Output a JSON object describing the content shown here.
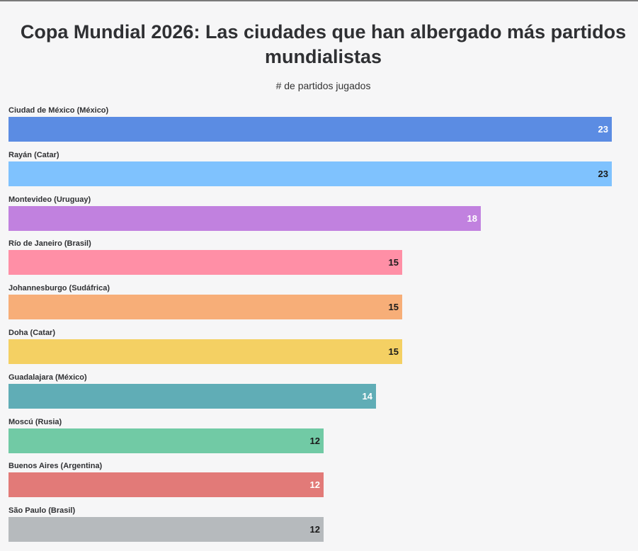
{
  "chart_data": {
    "type": "bar",
    "orientation": "horizontal",
    "title": "Copa Mundial 2026: Las ciudades que han albergado más partidos mundialistas",
    "subtitle": "# de partidos jugados",
    "xlim": [
      0,
      23
    ],
    "grid": false,
    "legend": "none",
    "categories": [
      "Ciudad de México (México)",
      "Rayán (Catar)",
      "Montevideo (Uruguay)",
      "Río de Janeiro (Brasil)",
      "Johannesburgo (Sudáfrica)",
      "Doha (Catar)",
      "Guadalajara (México)",
      "Moscú (Rusia)",
      "Buenos Aires (Argentina)",
      "São Paulo (Brasil)"
    ],
    "values": [
      23,
      23,
      18,
      15,
      15,
      15,
      14,
      12,
      12,
      12
    ],
    "colors": [
      "#5b8ce3",
      "#7fc2fe",
      "#c181df",
      "#ff8fa6",
      "#f7ae78",
      "#f4d063",
      "#60adb6",
      "#71caa5",
      "#e27a78",
      "#b6babd"
    ],
    "value_label_colors": [
      "#ffffff",
      "#1a1a1a",
      "#ffffff",
      "#1a1a1a",
      "#1a1a1a",
      "#1a1a1a",
      "#ffffff",
      "#1a1a1a",
      "#ffffff",
      "#1a1a1a"
    ]
  }
}
